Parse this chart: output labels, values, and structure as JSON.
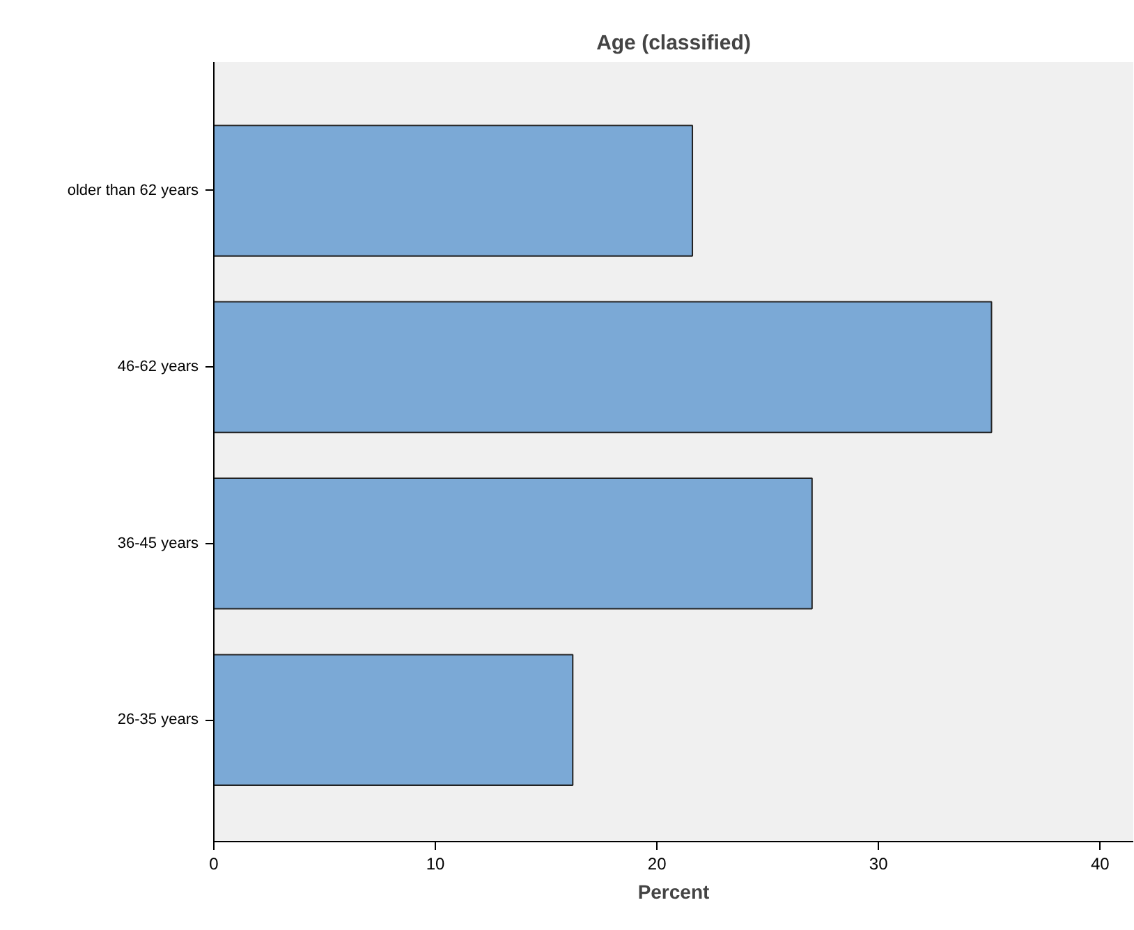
{
  "chart_data": {
    "type": "bar",
    "orientation": "horizontal",
    "title": "Age (classified)",
    "xlabel": "Percent",
    "categories": [
      "older than 62 years",
      "46-62 years",
      "36-45 years",
      "26-35 years"
    ],
    "values": [
      21.6,
      35.1,
      27.0,
      16.2
    ],
    "color": "#7ba9d6",
    "xlim": [
      0,
      41.5
    ],
    "xticks": [
      0,
      10,
      20,
      30,
      40
    ],
    "grid": false
  }
}
